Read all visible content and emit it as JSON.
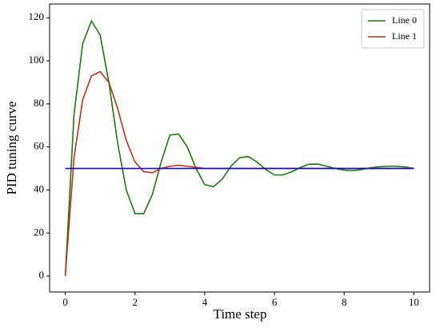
{
  "chart_data": {
    "type": "line",
    "xlabel": "Time step",
    "ylabel": "PID tuning curve",
    "x": [
      0,
      0.25,
      0.5,
      0.75,
      1,
      1.25,
      1.5,
      1.75,
      2,
      2.25,
      2.5,
      2.75,
      3,
      3.25,
      3.5,
      3.75,
      4,
      4.25,
      4.5,
      4.75,
      5,
      5.25,
      5.5,
      5.75,
      6,
      6.25,
      6.5,
      6.75,
      7,
      7.25,
      7.5,
      7.75,
      8,
      8.25,
      8.5,
      8.75,
      9,
      9.25,
      9.5,
      9.75,
      10
    ],
    "series": [
      {
        "name": "Line 0",
        "color": "#1a7a0a",
        "values": [
          0,
          75,
          108,
          118.5,
          112,
          90,
          62,
          40,
          29,
          29,
          38,
          53,
          65.5,
          66,
          60,
          50,
          42.5,
          41.5,
          45,
          51,
          55,
          55.5,
          53,
          49.5,
          47,
          47,
          48.5,
          50.5,
          52,
          52,
          51,
          50,
          49.2,
          49,
          49.5,
          50.3,
          50.8,
          51,
          51,
          50.7,
          50
        ]
      },
      {
        "name": "Line 1",
        "color": "#c0301a",
        "values": [
          0,
          55,
          82,
          93,
          95,
          90,
          78,
          63,
          53,
          48.5,
          48,
          50,
          51,
          51.5,
          51,
          50.5,
          50,
          50,
          50,
          50,
          50,
          50,
          50,
          50,
          50,
          50,
          50,
          50,
          50,
          50,
          50,
          50,
          50,
          50,
          50,
          50,
          50,
          50,
          50,
          50,
          50
        ]
      },
      {
        "color": "#1010c0",
        "x": [
          0,
          10
        ],
        "values": [
          50,
          50
        ]
      }
    ],
    "xlim": [
      -0.45,
      10.45
    ],
    "ylim": [
      -7.4,
      126.4
    ],
    "xticks": [
      0,
      2,
      4,
      6,
      8,
      10
    ],
    "yticks": [
      0,
      20,
      40,
      60,
      80,
      100,
      120
    ],
    "legend": "upper right"
  }
}
